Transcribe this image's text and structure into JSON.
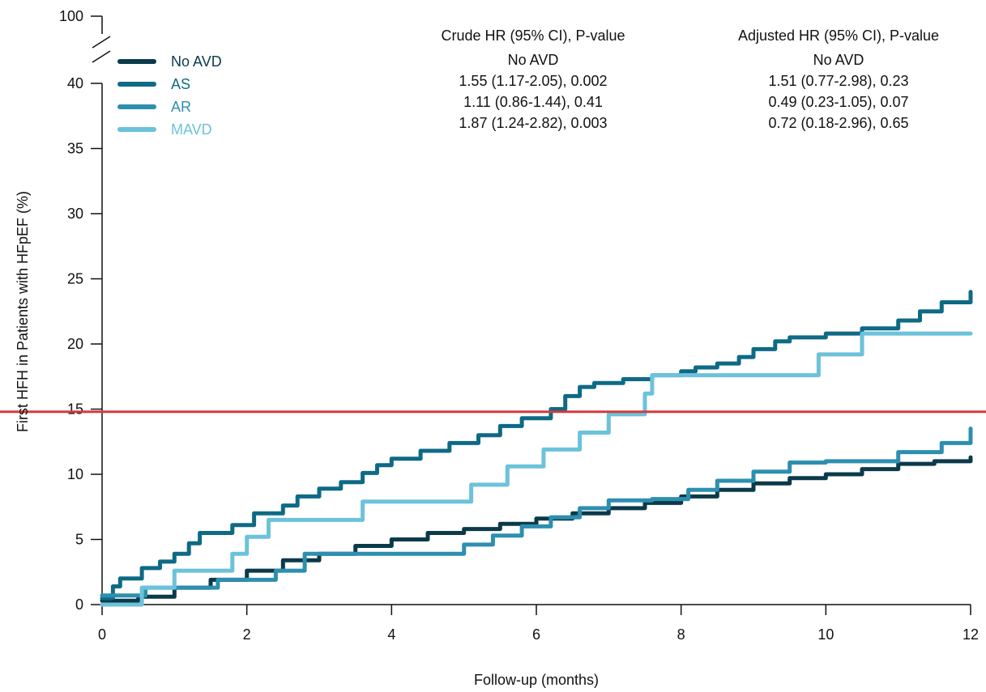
{
  "chart_data": {
    "type": "line",
    "xlabel": "Follow-up (months)",
    "ylabel": "First HFH in Patients with HFpEF (%)",
    "xlim": [
      0,
      12
    ],
    "ylim": [
      0,
      42
    ],
    "x_ticks": [
      "0",
      "2",
      "4",
      "6",
      "8",
      "10",
      "12"
    ],
    "y_ticks": [
      "0",
      "5",
      "10",
      "15",
      "20",
      "25",
      "30",
      "35",
      "40"
    ],
    "y_break_tick": "100",
    "y_axis_break": true,
    "grid": false,
    "legend_position": "top-left",
    "reference_line": {
      "y": 14.8,
      "color": "#d43a3f"
    },
    "series": [
      {
        "name": "No AVD",
        "color": "#0b3a4a",
        "x": [
          0,
          0.5,
          1.0,
          1.5,
          2.0,
          2.5,
          3.0,
          3.5,
          4.0,
          4.5,
          5.0,
          5.5,
          6.0,
          6.5,
          7.0,
          7.5,
          8.0,
          8.5,
          9.0,
          9.5,
          10.0,
          10.5,
          11.0,
          11.5,
          12.0
        ],
        "values": [
          0.3,
          0.6,
          1.3,
          1.9,
          2.6,
          3.4,
          3.9,
          4.5,
          5.0,
          5.5,
          5.8,
          6.2,
          6.6,
          7.0,
          7.4,
          7.8,
          8.3,
          8.8,
          9.3,
          9.7,
          10.0,
          10.4,
          10.8,
          11.0,
          11.3
        ]
      },
      {
        "name": "AS",
        "color": "#0e6a85",
        "x": [
          0,
          0.15,
          0.25,
          0.55,
          0.8,
          1.0,
          1.2,
          1.35,
          1.8,
          2.1,
          2.5,
          2.7,
          3.0,
          3.3,
          3.6,
          3.8,
          4.0,
          4.4,
          4.8,
          5.2,
          5.5,
          5.8,
          6.2,
          6.4,
          6.6,
          6.8,
          7.2,
          7.6,
          8.0,
          8.2,
          8.5,
          8.8,
          9.0,
          9.3,
          9.5,
          10.0,
          10.5,
          11.0,
          11.3,
          11.6,
          12.0
        ],
        "values": [
          0.5,
          1.4,
          2.0,
          2.8,
          3.3,
          3.9,
          4.7,
          5.5,
          6.1,
          7.0,
          7.6,
          8.3,
          8.9,
          9.4,
          10.1,
          10.7,
          11.2,
          11.8,
          12.4,
          13.0,
          13.7,
          14.3,
          15.0,
          16.0,
          16.7,
          17.0,
          17.3,
          17.6,
          17.9,
          18.2,
          18.5,
          19.0,
          19.6,
          20.2,
          20.5,
          20.8,
          21.2,
          21.8,
          22.5,
          23.2,
          24.0
        ]
      },
      {
        "name": "AR",
        "color": "#2d8fb0",
        "x": [
          0,
          0.6,
          1.0,
          1.6,
          2.4,
          2.8,
          3.1,
          4.5,
          5.0,
          5.4,
          5.8,
          6.2,
          6.6,
          7.0,
          7.6,
          8.1,
          8.5,
          9.0,
          9.5,
          10.0,
          10.5,
          11.0,
          11.6,
          12.0
        ],
        "values": [
          0.7,
          1.3,
          1.3,
          1.9,
          2.6,
          3.9,
          3.9,
          3.9,
          4.6,
          5.3,
          6.0,
          6.7,
          7.4,
          8.0,
          8.1,
          8.8,
          9.5,
          10.2,
          10.9,
          11.0,
          11.0,
          11.7,
          12.4,
          13.5
        ]
      },
      {
        "name": "MAVD",
        "color": "#6cc2da",
        "x": [
          0,
          0.55,
          1.0,
          1.5,
          1.8,
          2.0,
          2.3,
          2.5,
          3.0,
          3.6,
          4.5,
          5.1,
          5.6,
          6.1,
          6.6,
          7.0,
          7.5,
          7.6,
          8.5,
          9.9,
          10.5,
          11.0,
          12.0
        ],
        "values": [
          0.0,
          1.3,
          2.6,
          2.6,
          3.9,
          5.2,
          6.5,
          6.5,
          6.5,
          7.9,
          7.9,
          9.2,
          10.6,
          11.9,
          13.2,
          14.6,
          16.2,
          17.6,
          17.6,
          19.2,
          20.8,
          20.8,
          20.8
        ]
      }
    ],
    "hr_table": {
      "crude_header": "Crude HR (95% CI), P-value",
      "adjusted_header": "Adjusted HR (95% CI), P-value",
      "crude_rows": [
        "No AVD",
        "1.55 (1.17-2.05), 0.002",
        "1.11 (0.86-1.44), 0.41",
        "1.87 (1.24-2.82), 0.003"
      ],
      "adjusted_rows": [
        "No AVD",
        "1.51 (0.77-2.98), 0.23",
        "0.49 (0.23-1.05), 0.07",
        "0.72 (0.18-2.96), 0.65"
      ]
    }
  }
}
